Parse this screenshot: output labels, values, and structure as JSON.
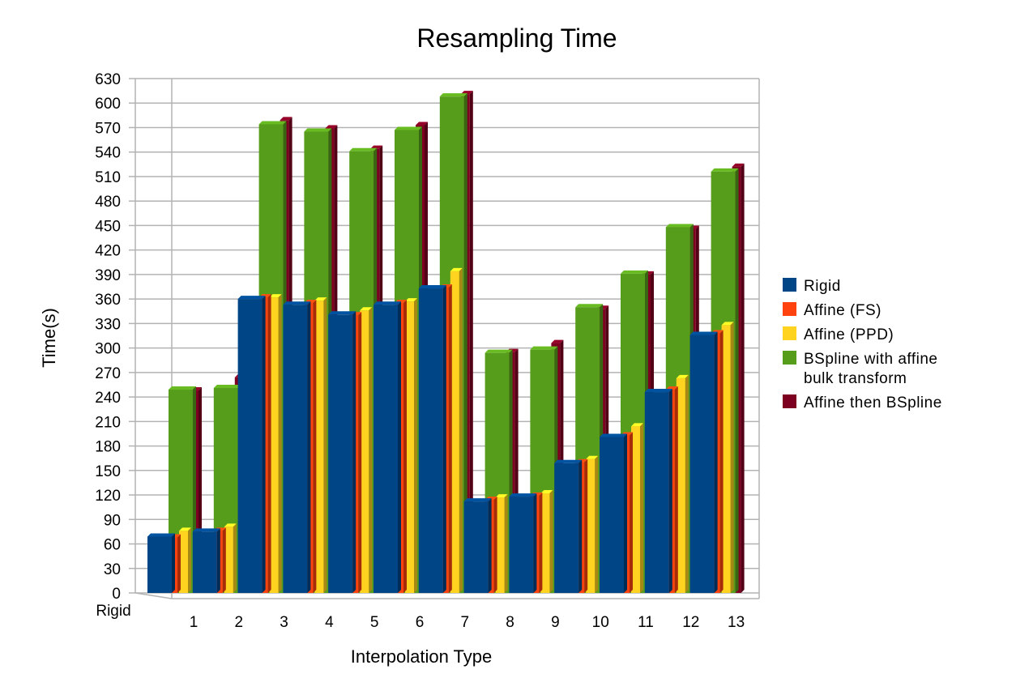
{
  "chart_data": {
    "type": "bar",
    "title": "Resampling Time",
    "xlabel": "Interpolation Type",
    "ylabel": "Time(s)",
    "ylim": [
      0,
      630
    ],
    "y_ticks": [
      0,
      30,
      60,
      90,
      120,
      150,
      180,
      210,
      240,
      270,
      300,
      330,
      360,
      390,
      420,
      450,
      480,
      510,
      540,
      570,
      600,
      630
    ],
    "grid": true,
    "legend_position": "right",
    "corner_label": "Rigid",
    "categories": [
      "1",
      "2",
      "3",
      "4",
      "5",
      "6",
      "7",
      "8",
      "9",
      "10",
      "11",
      "12",
      "13"
    ],
    "series": [
      {
        "name": "Rigid",
        "color": "#004586",
        "values": [
          69,
          75,
          360,
          353,
          341,
          353,
          373,
          112,
          118,
          159,
          191,
          246,
          316
        ]
      },
      {
        "name": "Affine (FS)",
        "color": "#ff420e",
        "values": [
          68,
          76,
          362,
          355,
          340,
          355,
          374,
          114,
          119,
          160,
          193,
          249,
          318
        ]
      },
      {
        "name": "Affine (PPD)",
        "color": "#ffd320",
        "values": [
          76,
          81,
          362,
          358,
          346,
          357,
          394,
          117,
          122,
          164,
          204,
          263,
          328
        ]
      },
      {
        "name": "BSpline with affine bulk transform",
        "color": "#579d1c",
        "values": [
          249,
          251,
          574,
          565,
          541,
          567,
          608,
          294,
          298,
          350,
          391,
          448,
          516
        ]
      },
      {
        "name": "Affine then BSpline",
        "color": "#7e0021",
        "values": [
          248,
          264,
          579,
          569,
          544,
          573,
          611,
          295,
          306,
          348,
          390,
          446,
          522
        ]
      }
    ]
  }
}
